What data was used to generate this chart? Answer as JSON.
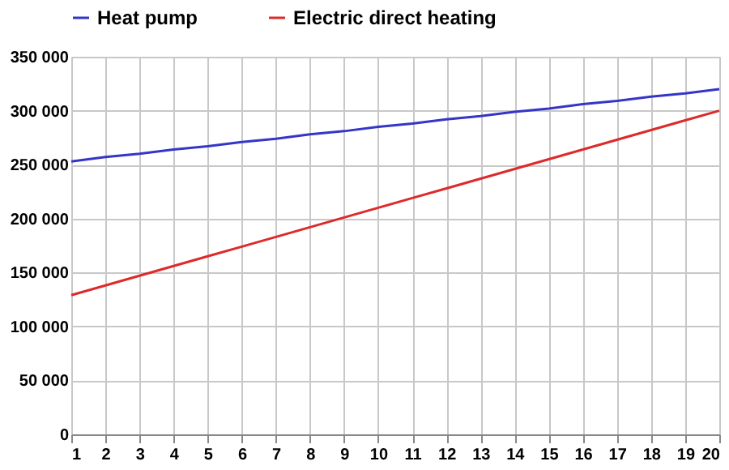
{
  "chart_data": {
    "type": "line",
    "x": [
      1,
      2,
      3,
      4,
      5,
      6,
      7,
      8,
      9,
      10,
      11,
      12,
      13,
      14,
      15,
      16,
      17,
      18,
      19,
      20
    ],
    "series": [
      {
        "name": "Heat pump",
        "color": "#3535c8",
        "values": [
          253000,
          257000,
          260000,
          264000,
          267000,
          271000,
          274000,
          278000,
          281000,
          285000,
          288000,
          292000,
          295000,
          299000,
          302000,
          306000,
          309000,
          313000,
          316000,
          320000
        ]
      },
      {
        "name": "Electric direct heating",
        "color": "#dd2a2a",
        "values": [
          129000,
          138000,
          147000,
          156000,
          165000,
          174000,
          183000,
          192000,
          201000,
          210000,
          219000,
          228000,
          237000,
          246000,
          255000,
          264000,
          273000,
          282000,
          291000,
          300000
        ]
      }
    ],
    "xlim": [
      1,
      20
    ],
    "xticks": [
      1,
      2,
      3,
      4,
      5,
      6,
      7,
      8,
      9,
      10,
      11,
      12,
      13,
      14,
      15,
      16,
      17,
      18,
      19,
      20
    ],
    "ylim": [
      0,
      350000
    ],
    "yticks": [
      0,
      {
        "value": 50000,
        "label": "50 000"
      },
      {
        "value": 100000,
        "label": "100 000"
      },
      {
        "value": 150000,
        "label": "150 000"
      },
      {
        "value": 200000,
        "label": "200 000"
      },
      {
        "value": 250000,
        "label": "250 000"
      },
      {
        "value": 300000,
        "label": "300 000"
      },
      {
        "value": 350000,
        "label": "350 000"
      }
    ],
    "grid": true,
    "legend": "top",
    "marker": "none",
    "line_style": "solid"
  }
}
